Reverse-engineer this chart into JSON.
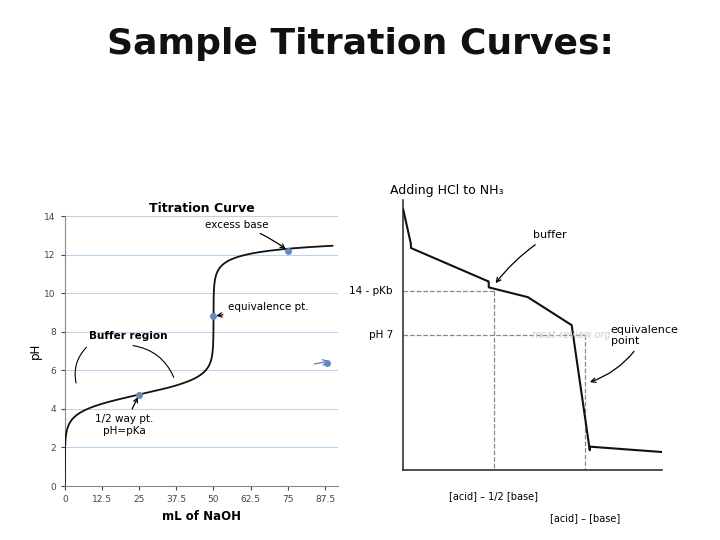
{
  "title": "Sample Titration Curves:",
  "title_fontsize": 26,
  "title_fontweight": "bold",
  "title_font": "sans-serif",
  "bg_color": "#ffffff",
  "left_plot": {
    "title": "Titration Curve",
    "title_fontsize": 9,
    "title_fontweight": "bold",
    "xlabel": "mL of NaOH",
    "ylabel": "pH",
    "xlim": [
      0,
      92
    ],
    "ylim": [
      0,
      14
    ],
    "yticks": [
      0,
      2,
      4,
      6,
      8,
      10,
      12,
      14
    ],
    "xticks": [
      0,
      12.5,
      25,
      37.5,
      50,
      62.5,
      75,
      87.5
    ],
    "xtick_labels": [
      "0",
      "12.5",
      "25",
      "37.5",
      "50",
      "62.5",
      "75",
      "87.5"
    ],
    "curve_color": "#111111",
    "point_color": "#6688bb",
    "grid_color": "#aaccee",
    "pKa": 4.74,
    "V_equiv": 50.0,
    "half_equiv_x": 25.0,
    "half_equiv_y": 4.74,
    "equiv_x": 50.0,
    "equiv_y": 8.8,
    "excess_x": 75.0,
    "excess_y": 12.2,
    "stray_x": 88.0,
    "stray_y": 6.4
  },
  "right_plot": {
    "title": "Adding HCl to NH₃",
    "title_fontsize": 9,
    "curve_color": "#111111",
    "watermark": "mcat-review.org",
    "watermark_color": "#cccccc",
    "xlim": [
      0,
      10
    ],
    "ylim": [
      0,
      14
    ],
    "half_equiv_x": 3.5,
    "equiv_x": 7.0,
    "pkb_y": 9.26,
    "ph7_y": 7.0,
    "dashed_color": "#888888",
    "label_14pkb": "14 - pKb",
    "label_ph7": "pH 7",
    "label_buffer": "buffer",
    "label_equiv": "equivalence\npoint",
    "label_bottom1": "[acid] – 1/2 [base]",
    "label_bottom2": "[acid] – [base]"
  }
}
